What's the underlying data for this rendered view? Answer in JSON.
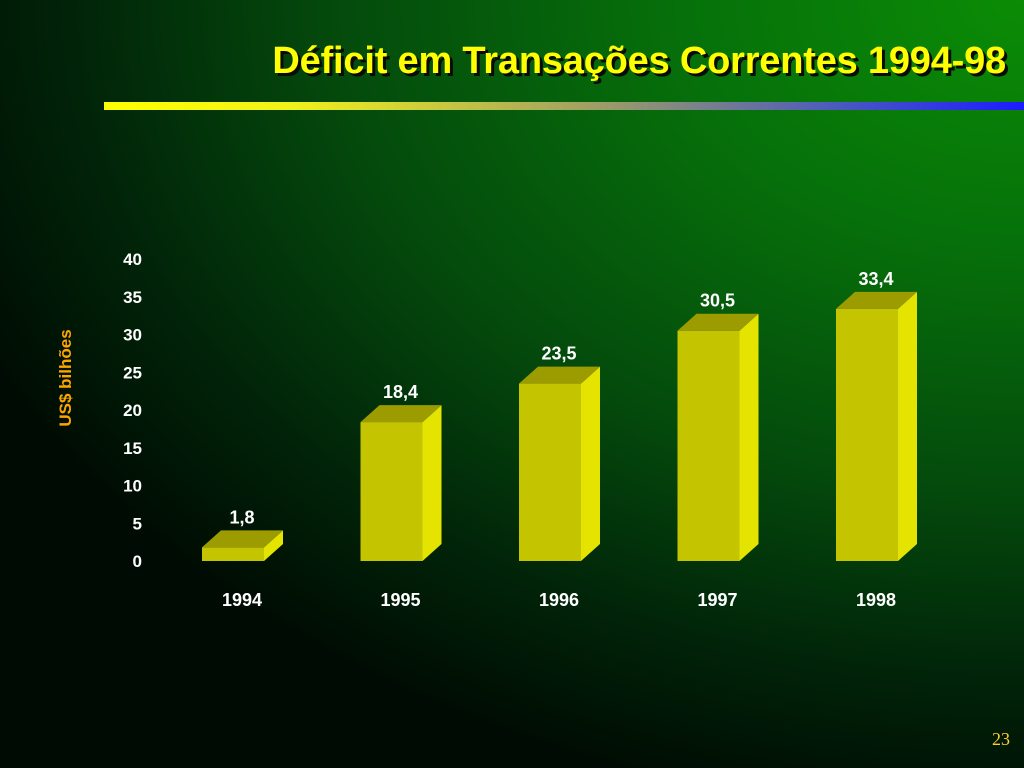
{
  "slide": {
    "title": "Déficit em Transações Correntes 1994-98",
    "page_number": "23"
  },
  "colors": {
    "title": "#ffff00",
    "ylabel": "#ffa500",
    "bar_front": "#c4c400",
    "bar_top": "#9c9c00",
    "bar_side": "#e4e400",
    "text": "#ffffff",
    "page_number": "#ffcc33"
  },
  "chart_data": {
    "type": "bar",
    "style": "3d-columns",
    "title": "Déficit em Transações Correntes 1994-98",
    "xlabel": "",
    "ylabel": "US$ bilhões",
    "categories": [
      "1994",
      "1995",
      "1996",
      "1997",
      "1998"
    ],
    "values": [
      1.8,
      18.4,
      23.5,
      30.5,
      33.4
    ],
    "value_labels": [
      "1,8",
      "18,4",
      "23,5",
      "30,5",
      "33,4"
    ],
    "ylim": [
      0,
      40
    ],
    "yticks": [
      0,
      5,
      10,
      15,
      20,
      25,
      30,
      35,
      40
    ],
    "ytick_labels": [
      "0",
      "5",
      "10",
      "15",
      "20",
      "25",
      "30",
      "35",
      "40"
    ],
    "grid": false,
    "legend": "none"
  }
}
